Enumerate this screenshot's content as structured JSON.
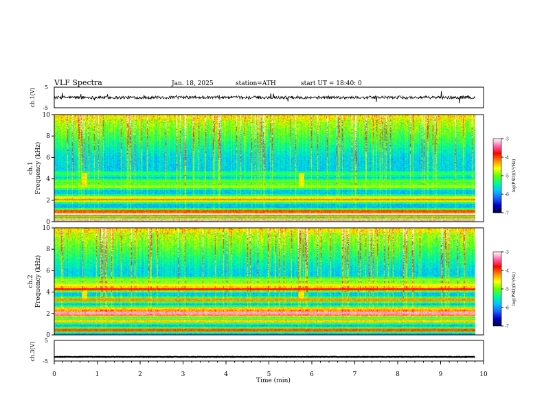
{
  "header": {
    "title": "VLF Spectra",
    "date": "Jan. 18, 2025",
    "station": "station=ATH",
    "start": "start UT = 18:40: 0"
  },
  "colors": {
    "trace": "#000000",
    "colormap": [
      "#000040",
      "#0000c8",
      "#1e64ff",
      "#00c8ff",
      "#00ff96",
      "#64ff00",
      "#ffff00",
      "#ff8c00",
      "#ff0000",
      "#ff66aa",
      "#ffffff"
    ]
  },
  "chart_data": [
    {
      "name": "ch1-waveform",
      "type": "line",
      "ylabel": "ch.1(V)",
      "ylim": [
        -5,
        5
      ],
      "ytick_labels": [
        "5",
        "-5"
      ],
      "xlim": [
        0,
        10
      ],
      "level": 0.0,
      "noise_amplitude": 1.2
    },
    {
      "name": "ch1-spectrogram",
      "type": "heatmap",
      "channel_label": "ch.1",
      "ylabel": "Frequency (kHz)",
      "ylim": [
        0,
        10
      ],
      "ytick_labels": [
        "0",
        "2",
        "4",
        "6",
        "8",
        "10"
      ],
      "xlim": [
        0,
        10
      ],
      "data_end_min": 9.8,
      "colorbar": {
        "label": "log(PSD)(V²/Hz)",
        "range": [
          -7,
          -3
        ],
        "tick_labels": [
          "-3",
          "-4",
          "-5",
          "-6",
          "-7"
        ]
      },
      "bands_khz": [
        {
          "f": 0.2,
          "level": 0.9
        },
        {
          "f": 0.7,
          "level": 0.8
        },
        {
          "f": 1.0,
          "level": 0.7
        },
        {
          "f": 2.0,
          "level": 0.55
        },
        {
          "f": 2.3,
          "level": 0.55
        },
        {
          "f": 3.3,
          "level": 0.5
        },
        {
          "f": 3.8,
          "level": 0.45
        },
        {
          "f": 4.5,
          "level": 0.4
        }
      ],
      "bursts_min": [
        0.7,
        5.75
      ]
    },
    {
      "name": "ch2-spectrogram",
      "type": "heatmap",
      "channel_label": "ch.2",
      "ylabel": "Frequency (kHz)",
      "ylim": [
        0,
        10
      ],
      "ytick_labels": [
        "0",
        "2",
        "4",
        "6",
        "8",
        "10"
      ],
      "xlim": [
        0,
        10
      ],
      "data_end_min": 9.8,
      "colorbar": {
        "label": "log(PSD)(V²/Hz)",
        "range": [
          -7,
          -3
        ],
        "tick_labels": [
          "-3",
          "-4",
          "-5",
          "-6",
          "-7"
        ]
      },
      "bands_khz": [
        {
          "f": 0.5,
          "level": 0.7
        },
        {
          "f": 1.3,
          "level": 0.6
        },
        {
          "f": 1.8,
          "level": 0.6
        },
        {
          "f": 2.1,
          "level": 0.9
        },
        {
          "f": 2.5,
          "level": 0.6
        },
        {
          "f": 3.3,
          "level": 0.65
        },
        {
          "f": 4.3,
          "level": 0.75
        },
        {
          "f": 4.7,
          "level": 0.55
        },
        {
          "f": 5.2,
          "level": 0.5
        }
      ],
      "bursts_min": [
        0.7,
        5.75
      ]
    },
    {
      "name": "ch3-waveform",
      "type": "line",
      "ylabel": "ch.3(V)",
      "ylim": [
        -5,
        5
      ],
      "ytick_labels": [
        "5",
        "-5"
      ],
      "xlim": [
        0,
        10
      ],
      "level": -3.0,
      "noise_amplitude": 0.2,
      "xlabel": "Time (min)",
      "xtick_labels": [
        "0",
        "1",
        "2",
        "3",
        "4",
        "5",
        "6",
        "7",
        "8",
        "9",
        "10"
      ]
    }
  ]
}
